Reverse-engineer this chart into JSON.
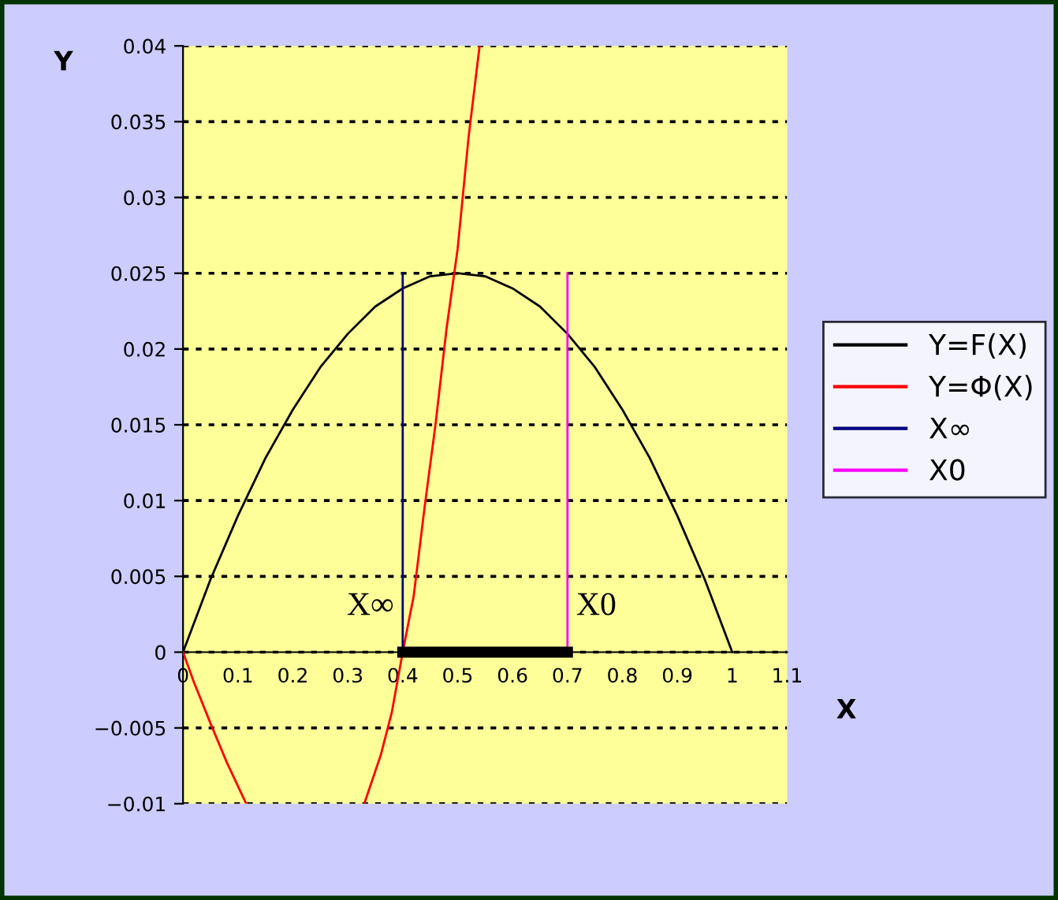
{
  "chart_data": {
    "type": "line",
    "xlabel": "X",
    "ylabel": "Y",
    "series": [
      {
        "name": "Y=F(X)",
        "color": "#000000",
        "x": [
          0,
          0.05,
          0.1,
          0.15,
          0.2,
          0.25,
          0.3,
          0.35,
          0.4,
          0.45,
          0.5,
          0.55,
          0.6,
          0.65,
          0.7,
          0.75,
          0.8,
          0.85,
          0.9,
          0.95,
          1.0
        ],
        "values": [
          0,
          0.0048,
          0.009,
          0.0128,
          0.016,
          0.0188,
          0.021,
          0.0228,
          0.024,
          0.0248,
          0.025,
          0.0248,
          0.024,
          0.0228,
          0.021,
          0.0188,
          0.016,
          0.0128,
          0.009,
          0.0048,
          0
        ]
      },
      {
        "name": "Y=Φ(X)",
        "color": "#ff0000",
        "x": [
          0,
          0.02,
          0.05,
          0.08,
          0.115,
          0.2,
          0.33,
          0.36,
          0.38,
          0.4,
          0.42,
          0.44,
          0.46,
          0.48,
          0.5,
          0.52,
          0.54
        ],
        "values": [
          0,
          -0.002,
          -0.0047,
          -0.0073,
          -0.01,
          null,
          -0.01,
          -0.0068,
          -0.004,
          0,
          0.0037,
          0.0096,
          0.0151,
          0.0214,
          0.0266,
          0.034,
          0.04
        ]
      },
      {
        "name": "X∞",
        "color": "#000080",
        "x": [
          0.4,
          0.4
        ],
        "values": [
          0,
          0.025
        ]
      },
      {
        "name": "X0",
        "color": "#ff00ff",
        "x": [
          0.7,
          0.7
        ],
        "values": [
          0,
          0.025
        ]
      },
      {
        "color": "#000000",
        "x": [
          0.4,
          0.7
        ],
        "values": [
          0,
          0
        ]
      }
    ],
    "xlim": [
      0,
      1.1
    ],
    "xticks": [
      0,
      0.1,
      0.2,
      0.3,
      0.4,
      0.5,
      0.6,
      0.7,
      0.8,
      0.9,
      1,
      1.1
    ],
    "ylim": [
      -0.01,
      0.04
    ],
    "yticks": [
      {
        "value": -0.01,
        "label": "−0.01"
      },
      {
        "value": -0.005,
        "label": "−0.005"
      },
      0,
      0.005,
      0.01,
      0.015,
      0.02,
      0.025,
      0.03,
      0.035,
      0.04
    ],
    "grid": "y",
    "legend": "right",
    "line_style": "solid",
    "marker": "none",
    "annotations": [
      {
        "text": "X∞",
        "x": 0.4,
        "y": 0.002
      },
      {
        "text": "X0",
        "x": 0.7,
        "y": 0.002
      }
    ]
  }
}
